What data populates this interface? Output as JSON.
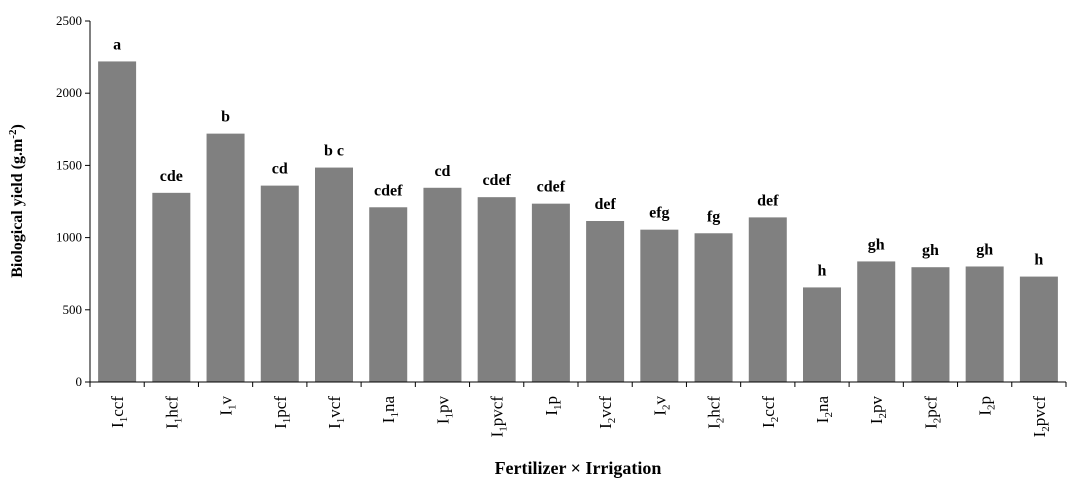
{
  "chart_data": {
    "type": "bar",
    "title": "",
    "xlabel": "Fertilizer × Irrigation",
    "ylabel": "Biological yield (g.m-2)",
    "ylim": [
      0,
      2500
    ],
    "yticks": [
      0,
      500,
      1000,
      1500,
      2000,
      2500
    ],
    "grid": false,
    "bar_color": "#808080",
    "categories": [
      "I1ccf",
      "I1hcf",
      "I1v",
      "I1pcf",
      "I1vcf",
      "I1na",
      "I1pv",
      "I1pvcf",
      "I1p",
      "I2vcf",
      "I2v",
      "I2hcf",
      "I2ccf",
      "I2na",
      "I2pv",
      "I2pcf",
      "I2p",
      "I2pvcf"
    ],
    "category_labels": [
      {
        "base": "I",
        "sub": "1",
        "rest": "ccf"
      },
      {
        "base": "I",
        "sub": "1",
        "rest": "hcf"
      },
      {
        "base": "I",
        "sub": "1",
        "rest": "v"
      },
      {
        "base": "I",
        "sub": "1",
        "rest": "pcf"
      },
      {
        "base": "I",
        "sub": "1",
        "rest": "vcf"
      },
      {
        "base": "I",
        "sub": "1",
        "rest": "na"
      },
      {
        "base": "I",
        "sub": "1",
        "rest": "pv"
      },
      {
        "base": "I",
        "sub": "1",
        "rest": "pvcf"
      },
      {
        "base": "I",
        "sub": "1",
        "rest": "p"
      },
      {
        "base": "I",
        "sub": "2",
        "rest": "vcf"
      },
      {
        "base": "I",
        "sub": "2",
        "rest": "v"
      },
      {
        "base": "I",
        "sub": "2",
        "rest": "hcf"
      },
      {
        "base": "I",
        "sub": "2",
        "rest": "ccf"
      },
      {
        "base": "I",
        "sub": "2",
        "rest": "na"
      },
      {
        "base": "I",
        "sub": "2",
        "rest": "pv"
      },
      {
        "base": "I",
        "sub": "2",
        "rest": "pcf"
      },
      {
        "base": "I",
        "sub": "2",
        "rest": "p"
      },
      {
        "base": "I",
        "sub": "2",
        "rest": "pvcf"
      }
    ],
    "values": [
      2220,
      1310,
      1720,
      1360,
      1485,
      1210,
      1345,
      1280,
      1235,
      1115,
      1055,
      1030,
      1140,
      655,
      835,
      795,
      800,
      730
    ],
    "letters": [
      "a",
      "cde",
      "b",
      "cd",
      "b c",
      "cdef",
      "cd",
      "cdef",
      "cdef",
      "def",
      "efg",
      "fg",
      "def",
      "h",
      "gh",
      "gh",
      "gh",
      "h"
    ]
  }
}
